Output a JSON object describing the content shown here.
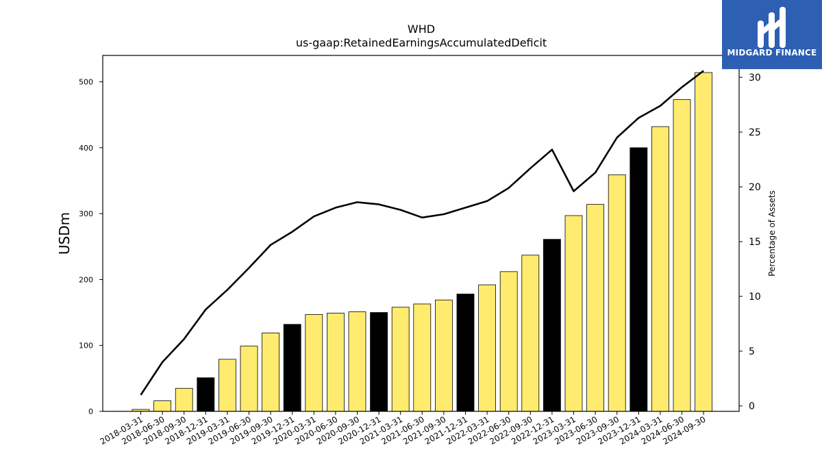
{
  "chart_data": {
    "type": "bar",
    "title": "WHD",
    "subtitle": "us-gaap:RetainedEarningsAccumulatedDeficit",
    "ylabel": "USDm",
    "y2label": "Percentage of Assets",
    "ylim": [
      0,
      540
    ],
    "y2lim": [
      -0.5,
      32
    ],
    "yticks": [
      0,
      100,
      200,
      300,
      400,
      500
    ],
    "y2ticks": [
      0,
      5,
      10,
      15,
      20,
      25,
      30
    ],
    "categories": [
      "2018-03-31",
      "2018-06-30",
      "2018-09-30",
      "2018-12-31",
      "2019-03-31",
      "2019-06-30",
      "2019-09-30",
      "2019-12-31",
      "2020-03-31",
      "2020-06-30",
      "2020-09-30",
      "2020-12-31",
      "2021-03-31",
      "2021-06-30",
      "2021-09-30",
      "2021-12-31",
      "2022-03-31",
      "2022-06-30",
      "2022-09-30",
      "2022-12-31",
      "2023-03-31",
      "2023-06-30",
      "2023-09-30",
      "2023-12-31",
      "2024-03-31",
      "2024-06-30",
      "2024-09-30"
    ],
    "series": [
      {
        "type": "bar",
        "axis": "left",
        "values": [
          3,
          16,
          35,
          51,
          79,
          99,
          119,
          132,
          147,
          149,
          151,
          150,
          158,
          163,
          169,
          178,
          192,
          212,
          237,
          261,
          297,
          314,
          359,
          400,
          432,
          473,
          514
        ],
        "colors": [
          "#ffeb6e",
          "#ffeb6e",
          "#ffeb6e",
          "#000000",
          "#ffeb6e",
          "#ffeb6e",
          "#ffeb6e",
          "#000000",
          "#ffeb6e",
          "#ffeb6e",
          "#ffeb6e",
          "#000000",
          "#ffeb6e",
          "#ffeb6e",
          "#ffeb6e",
          "#000000",
          "#ffeb6e",
          "#ffeb6e",
          "#ffeb6e",
          "#000000",
          "#ffeb6e",
          "#ffeb6e",
          "#ffeb6e",
          "#000000",
          "#ffeb6e",
          "#ffeb6e",
          "#ffeb6e"
        ]
      },
      {
        "type": "line",
        "axis": "right",
        "color": "#000000",
        "values": [
          1.0,
          4.0,
          6.1,
          8.8,
          10.6,
          12.6,
          14.7,
          15.9,
          17.3,
          18.1,
          18.6,
          18.4,
          17.9,
          17.2,
          17.5,
          18.1,
          18.7,
          19.9,
          21.7,
          23.4,
          19.6,
          21.3,
          24.5,
          26.3,
          27.4,
          29.1,
          30.6
        ]
      }
    ],
    "grid": false,
    "legend": "none"
  },
  "logo": {
    "text": "MIDGARD FINANCE"
  }
}
